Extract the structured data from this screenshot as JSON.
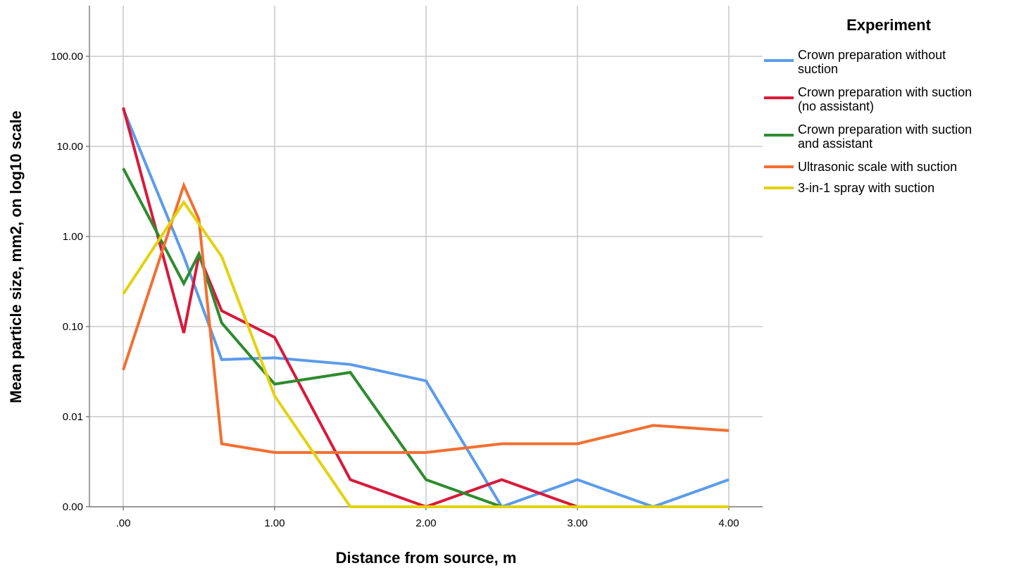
{
  "chart_data": {
    "type": "line",
    "xlabel": "Distance from source, m",
    "ylabel": "Mean particle size, mm2, on log10 scale",
    "x_ticks": [
      ".00",
      "1.00",
      "2.00",
      "3.00",
      "4.00"
    ],
    "x_tick_values": [
      0,
      1,
      2,
      3,
      4
    ],
    "y_ticks": [
      "0.00",
      "0.01",
      "0.10",
      "1.00",
      "10.00",
      "100.00"
    ],
    "y_scale": "log10",
    "grid": true,
    "legend_title": "Experiment",
    "legend_position": "right",
    "series": [
      {
        "name": "Crown preparation without suction",
        "name_lines": [
          "Crown preparation without",
          "suction"
        ],
        "color": "#5b9bea",
        "x": [
          0,
          0.4,
          0.65,
          1.0,
          1.5,
          2.0,
          2.5,
          3.0,
          3.5,
          4.0
        ],
        "y": [
          26,
          0.6,
          0.043,
          0.045,
          0.038,
          0.025,
          0.001,
          0.002,
          0.001,
          0.002
        ]
      },
      {
        "name": "Crown preparation with suction (no assistant)",
        "name_lines": [
          "Crown preparation with suction",
          "(no assistant)"
        ],
        "color": "#d8193a",
        "x": [
          0,
          0.4,
          0.5,
          0.65,
          1.0,
          1.5,
          2.0,
          2.5,
          3.0,
          4.0
        ],
        "y": [
          27,
          0.085,
          0.62,
          0.15,
          0.076,
          0.002,
          0.001,
          0.002,
          0.001,
          0.001
        ]
      },
      {
        "name": "Crown preparation with suction and assistant",
        "name_lines": [
          "Crown preparation with suction",
          "and assistant"
        ],
        "color": "#2e8b2e",
        "x": [
          0,
          0.4,
          0.5,
          0.65,
          1.0,
          1.5,
          2.0,
          2.5,
          3.0,
          4.0
        ],
        "y": [
          5.7,
          0.3,
          0.64,
          0.11,
          0.023,
          0.031,
          0.002,
          0.001,
          0.001,
          0.001
        ]
      },
      {
        "name": "Ultrasonic scale with suction",
        "name_lines": [
          "Ultrasonic scale with suction"
        ],
        "color": "#f26f31",
        "x": [
          0,
          0.4,
          0.5,
          0.65,
          1.0,
          1.5,
          2.0,
          2.5,
          3.0,
          3.5,
          4.0
        ],
        "y": [
          0.033,
          3.7,
          1.55,
          0.005,
          0.004,
          0.004,
          0.004,
          0.005,
          0.005,
          0.008,
          0.007
        ]
      },
      {
        "name": "3-in-1 spray with suction",
        "name_lines": [
          "3-in-1 spray with suction"
        ],
        "color": "#e3d20f",
        "x": [
          0,
          0.4,
          0.65,
          1.0,
          1.5,
          2.0,
          2.5,
          3.0,
          4.0
        ],
        "y": [
          0.23,
          2.4,
          0.6,
          0.017,
          0.001,
          0.001,
          0.001,
          0.001,
          0.001
        ]
      }
    ]
  }
}
